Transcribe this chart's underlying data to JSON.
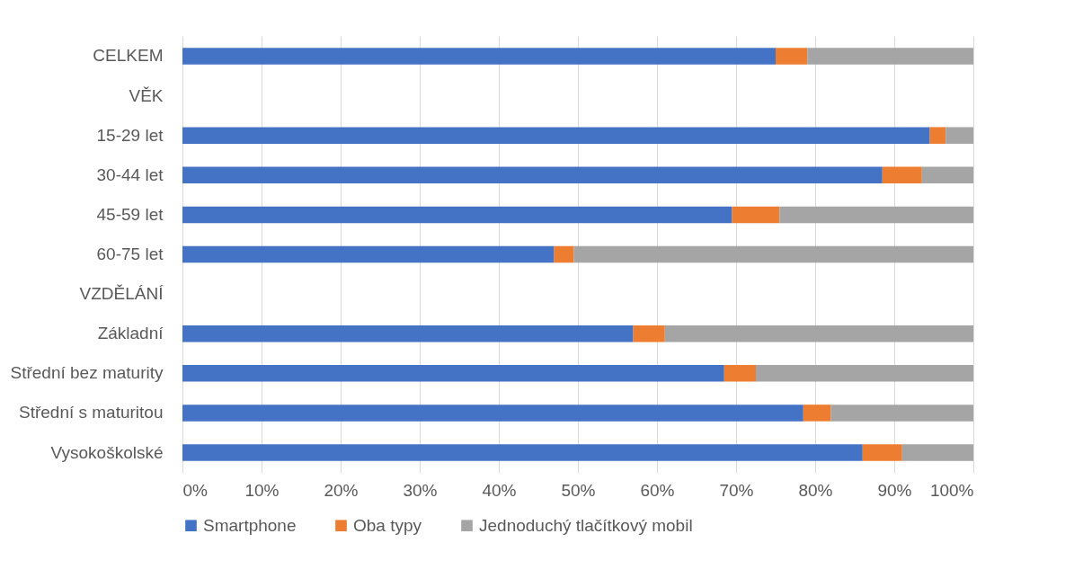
{
  "chart_data": {
    "type": "bar",
    "orientation": "horizontal",
    "stacked": true,
    "categories": [
      "CELKEM",
      "VĚK",
      "15-29 let",
      "30-44 let",
      "45-59 let",
      "60-75 let",
      "VZDĚLÁNÍ",
      "Základní",
      "Střední bez maturity",
      "Střední s maturitou",
      "Vysokoškolské"
    ],
    "series": [
      {
        "name": "Smartphone",
        "color": "#4472c4",
        "values": [
          75,
          null,
          94.5,
          88.5,
          69.5,
          47,
          null,
          57,
          68.5,
          78.5,
          86
        ]
      },
      {
        "name": "Oba typy",
        "color": "#ed7d31",
        "values": [
          4,
          null,
          2,
          5,
          6,
          2.5,
          null,
          4,
          4,
          3.5,
          5
        ]
      },
      {
        "name": "Jednoduchý tlačítkový mobil",
        "color": "#a5a5a5",
        "values": [
          21,
          null,
          3.5,
          6.5,
          24.5,
          50.5,
          null,
          39,
          27.5,
          18,
          9
        ]
      }
    ],
    "xlim": [
      0,
      100
    ],
    "xticks": [
      {
        "value": 0,
        "label": "0%"
      },
      {
        "value": 10,
        "label": "10%"
      },
      {
        "value": 20,
        "label": "20%"
      },
      {
        "value": 30,
        "label": "30%"
      },
      {
        "value": 40,
        "label": "40%"
      },
      {
        "value": 50,
        "label": "50%"
      },
      {
        "value": 60,
        "label": "60%"
      },
      {
        "value": 70,
        "label": "70%"
      },
      {
        "value": 80,
        "label": "80%"
      },
      {
        "value": 90,
        "label": "90%"
      },
      {
        "value": 100,
        "label": "100%"
      }
    ],
    "grid": "x",
    "legend": "bottom"
  }
}
